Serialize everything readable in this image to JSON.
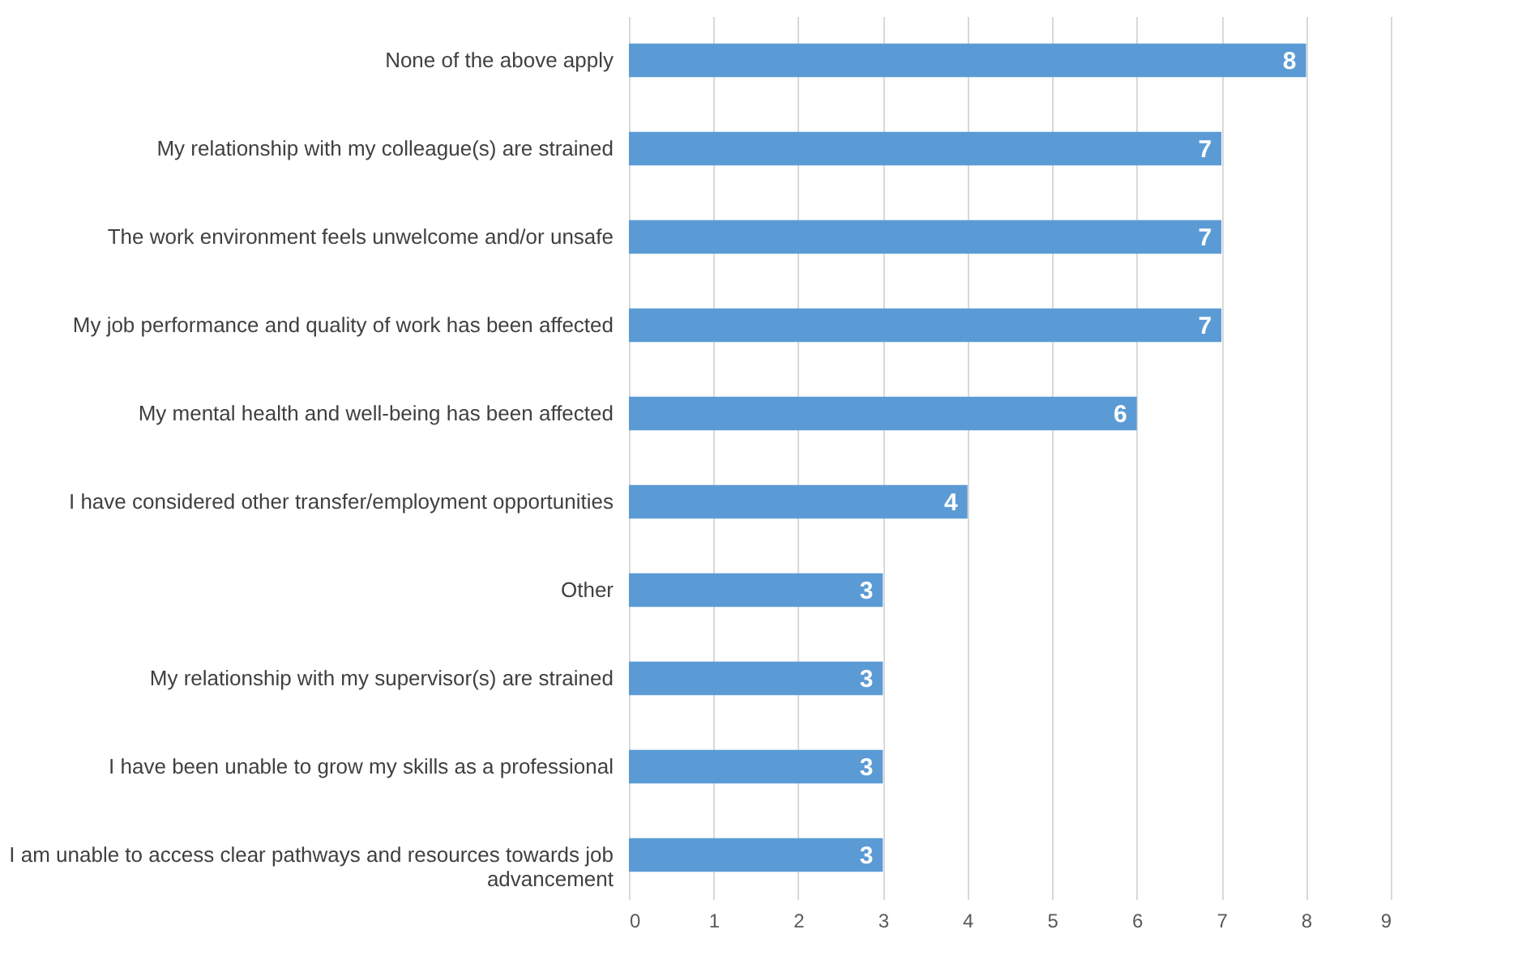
{
  "chart_data": {
    "type": "bar",
    "orientation": "horizontal",
    "categories": [
      "None of the above apply",
      "My relationship with my colleague(s) are strained",
      "The work environment feels unwelcome and/or unsafe",
      "My job performance and quality of work has been affected",
      "My mental health and well-being has been affected",
      "I have considered other transfer/employment opportunities",
      "Other",
      "My relationship with my supervisor(s) are strained",
      "I have been unable to grow my skills as a professional",
      "I am unable to access clear pathways and resources towards job advancement"
    ],
    "values": [
      8,
      7,
      7,
      7,
      6,
      4,
      3,
      3,
      3,
      3
    ],
    "color": "#5b9bd5",
    "xlim": [
      0,
      9
    ],
    "xticks": [
      0,
      1,
      2,
      3,
      4,
      5,
      6,
      7,
      8,
      9
    ],
    "grid": "x",
    "data_labels": true
  }
}
